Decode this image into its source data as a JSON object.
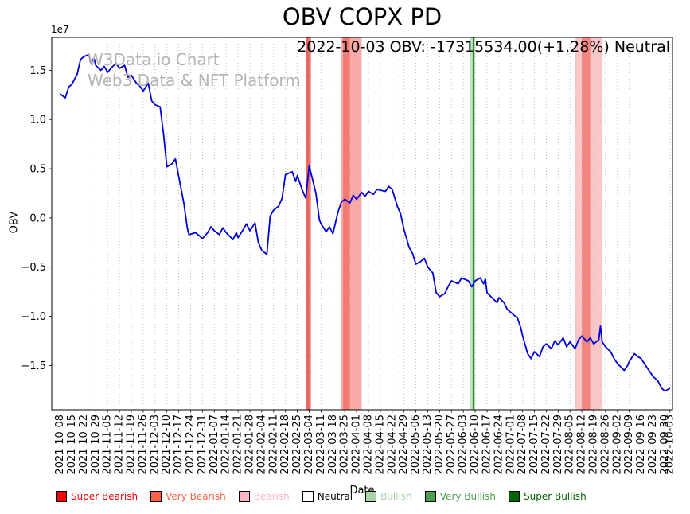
{
  "watermark": {
    "line1": "W3Data.io Chart",
    "line2": "Web3 Data & NFT Platform"
  },
  "legend": [
    {
      "label": "Super Bearish",
      "color": "#ff0000",
      "text_color": "#ff0000"
    },
    {
      "label": "Very Bearish",
      "color": "#ff6347",
      "text_color": "#ff6347"
    },
    {
      "label": "Bearish",
      "color": "#ffb6c1",
      "text_color": "#ffb6c1"
    },
    {
      "label": "Neutral",
      "color": "#ffffff",
      "text_color": "#000000"
    },
    {
      "label": "Bullish",
      "color": "#a8d5a8",
      "text_color": "#a8d5a8"
    },
    {
      "label": "Very Bullish",
      "color": "#4d9e4d",
      "text_color": "#4d9e4d"
    },
    {
      "label": "Super Bullish",
      "color": "#006400",
      "text_color": "#006400"
    }
  ],
  "chart_data": {
    "type": "line",
    "title": "OBV COPX PD",
    "annotation": "2022-10-03 OBV: -17315534.00(+1.28%) Neutral",
    "xlabel": "Date",
    "ylabel": "OBV",
    "y_offset_text": "1e7",
    "grid": "vertical-dotted",
    "legend_position": "bottom",
    "value_multiplier": 10000000,
    "ylim": [
      -19500000,
      18350000
    ],
    "y_ticks": [
      -1.5,
      -1.0,
      -0.5,
      0.0,
      0.5,
      1.0,
      1.5
    ],
    "x_tick_dates": [
      "2021-10-08",
      "2021-10-15",
      "2021-10-22",
      "2021-10-29",
      "2021-11-05",
      "2021-11-12",
      "2021-11-19",
      "2021-11-26",
      "2021-12-03",
      "2021-12-10",
      "2021-12-17",
      "2021-12-24",
      "2021-12-31",
      "2022-01-07",
      "2022-01-14",
      "2022-01-21",
      "2022-01-28",
      "2022-02-04",
      "2022-02-11",
      "2022-02-18",
      "2022-02-25",
      "2022-03-04",
      "2022-03-11",
      "2022-03-18",
      "2022-03-25",
      "2022-04-01",
      "2022-04-08",
      "2022-04-15",
      "2022-04-22",
      "2022-04-29",
      "2022-05-06",
      "2022-05-13",
      "2022-05-20",
      "2022-05-27",
      "2022-06-03",
      "2022-06-10",
      "2022-06-17",
      "2022-06-24",
      "2022-07-01",
      "2022-07-08",
      "2022-07-15",
      "2022-07-22",
      "2022-07-29",
      "2022-08-05",
      "2022-08-12",
      "2022-08-19",
      "2022-08-26",
      "2022-09-02",
      "2022-09-09",
      "2022-09-16",
      "2022-09-23",
      "2022-09-30",
      "2022-10-03"
    ],
    "signal_bands": [
      {
        "start": "2022-03-02",
        "end": "2022-03-05",
        "color": "#e8413a",
        "opacity": 0.8
      },
      {
        "start": "2022-03-23",
        "end": "2022-04-04",
        "color": "#f4645c",
        "opacity": 0.55
      },
      {
        "start": "2022-03-24",
        "end": "2022-03-28",
        "color": "#e8413a",
        "opacity": 0.45
      },
      {
        "start": "2022-06-07",
        "end": "2022-06-10",
        "color": "#8fd08f",
        "opacity": 0.6
      },
      {
        "start": "2022-08-08",
        "end": "2022-08-24",
        "color": "#f08080",
        "opacity": 0.45
      },
      {
        "start": "2022-08-12",
        "end": "2022-08-17",
        "color": "#ef5a50",
        "opacity": 0.6
      }
    ],
    "signal_lines": [
      {
        "date": "2022-06-09",
        "color": "#1f7a1f"
      }
    ],
    "series": [
      {
        "name": "OBV",
        "color": "#0000dd",
        "points": [
          [
            "2021-10-08",
            1.26
          ],
          [
            "2021-10-11",
            1.22
          ],
          [
            "2021-10-13",
            1.33
          ],
          [
            "2021-10-15",
            1.36
          ],
          [
            "2021-10-18",
            1.46
          ],
          [
            "2021-10-20",
            1.61
          ],
          [
            "2021-10-22",
            1.64
          ],
          [
            "2021-10-25",
            1.66
          ],
          [
            "2021-10-26",
            1.58
          ],
          [
            "2021-10-28",
            1.62
          ],
          [
            "2021-10-29",
            1.55
          ],
          [
            "2021-11-01",
            1.5
          ],
          [
            "2021-11-03",
            1.54
          ],
          [
            "2021-11-05",
            1.48
          ],
          [
            "2021-11-08",
            1.54
          ],
          [
            "2021-11-10",
            1.57
          ],
          [
            "2021-11-12",
            1.52
          ],
          [
            "2021-11-15",
            1.55
          ],
          [
            "2021-11-17",
            1.43
          ],
          [
            "2021-11-19",
            1.45
          ],
          [
            "2021-11-22",
            1.37
          ],
          [
            "2021-11-24",
            1.34
          ],
          [
            "2021-11-26",
            1.29
          ],
          [
            "2021-11-29",
            1.37
          ],
          [
            "2021-12-01",
            1.19
          ],
          [
            "2021-12-03",
            1.15
          ],
          [
            "2021-12-06",
            1.13
          ],
          [
            "2021-12-08",
            0.85
          ],
          [
            "2021-12-10",
            0.52
          ],
          [
            "2021-12-13",
            0.55
          ],
          [
            "2021-12-15",
            0.6
          ],
          [
            "2021-12-17",
            0.42
          ],
          [
            "2021-12-20",
            0.15
          ],
          [
            "2021-12-22",
            -0.1
          ],
          [
            "2021-12-23",
            -0.17
          ],
          [
            "2021-12-27",
            -0.15
          ],
          [
            "2021-12-29",
            -0.18
          ],
          [
            "2021-12-31",
            -0.21
          ],
          [
            "2022-01-03",
            -0.15
          ],
          [
            "2022-01-05",
            -0.09
          ],
          [
            "2022-01-07",
            -0.13
          ],
          [
            "2022-01-10",
            -0.17
          ],
          [
            "2022-01-12",
            -0.1
          ],
          [
            "2022-01-14",
            -0.15
          ],
          [
            "2022-01-18",
            -0.22
          ],
          [
            "2022-01-20",
            -0.15
          ],
          [
            "2022-01-21",
            -0.2
          ],
          [
            "2022-01-24",
            -0.12
          ],
          [
            "2022-01-26",
            -0.06
          ],
          [
            "2022-01-28",
            -0.13
          ],
          [
            "2022-01-31",
            -0.05
          ],
          [
            "2022-02-02",
            -0.25
          ],
          [
            "2022-02-04",
            -0.33
          ],
          [
            "2022-02-07",
            -0.37
          ],
          [
            "2022-02-09",
            0.02
          ],
          [
            "2022-02-11",
            0.08
          ],
          [
            "2022-02-14",
            0.12
          ],
          [
            "2022-02-16",
            0.2
          ],
          [
            "2022-02-18",
            0.44
          ],
          [
            "2022-02-22",
            0.47
          ],
          [
            "2022-02-24",
            0.37
          ],
          [
            "2022-02-25",
            0.43
          ],
          [
            "2022-02-28",
            0.28
          ],
          [
            "2022-03-02",
            0.2
          ],
          [
            "2022-03-04",
            0.53
          ],
          [
            "2022-03-08",
            0.25
          ],
          [
            "2022-03-10",
            -0.02
          ],
          [
            "2022-03-11",
            -0.06
          ],
          [
            "2022-03-14",
            -0.14
          ],
          [
            "2022-03-16",
            -0.09
          ],
          [
            "2022-03-18",
            -0.16
          ],
          [
            "2022-03-21",
            0.06
          ],
          [
            "2022-03-23",
            0.16
          ],
          [
            "2022-03-25",
            0.19
          ],
          [
            "2022-03-28",
            0.15
          ],
          [
            "2022-03-30",
            0.23
          ],
          [
            "2022-04-01",
            0.19
          ],
          [
            "2022-04-04",
            0.26
          ],
          [
            "2022-04-06",
            0.22
          ],
          [
            "2022-04-08",
            0.27
          ],
          [
            "2022-04-11",
            0.24
          ],
          [
            "2022-04-13",
            0.29
          ],
          [
            "2022-04-18",
            0.27
          ],
          [
            "2022-04-20",
            0.32
          ],
          [
            "2022-04-22",
            0.29
          ],
          [
            "2022-04-25",
            0.12
          ],
          [
            "2022-04-27",
            0.04
          ],
          [
            "2022-04-29",
            -0.12
          ],
          [
            "2022-05-02",
            -0.3
          ],
          [
            "2022-05-04",
            -0.36
          ],
          [
            "2022-05-06",
            -0.47
          ],
          [
            "2022-05-09",
            -0.44
          ],
          [
            "2022-05-11",
            -0.41
          ],
          [
            "2022-05-13",
            -0.5
          ],
          [
            "2022-05-16",
            -0.56
          ],
          [
            "2022-05-18",
            -0.76
          ],
          [
            "2022-05-20",
            -0.8
          ],
          [
            "2022-05-23",
            -0.77
          ],
          [
            "2022-05-25",
            -0.7
          ],
          [
            "2022-05-27",
            -0.64
          ],
          [
            "2022-05-31",
            -0.67
          ],
          [
            "2022-06-02",
            -0.61
          ],
          [
            "2022-06-06",
            -0.64
          ],
          [
            "2022-06-08",
            -0.7
          ],
          [
            "2022-06-10",
            -0.64
          ],
          [
            "2022-06-13",
            -0.61
          ],
          [
            "2022-06-15",
            -0.67
          ],
          [
            "2022-06-16",
            -0.62
          ],
          [
            "2022-06-17",
            -0.76
          ],
          [
            "2022-06-21",
            -0.83
          ],
          [
            "2022-06-23",
            -0.86
          ],
          [
            "2022-06-24",
            -0.81
          ],
          [
            "2022-06-27",
            -0.86
          ],
          [
            "2022-06-29",
            -0.93
          ],
          [
            "2022-07-01",
            -0.96
          ],
          [
            "2022-07-05",
            -1.02
          ],
          [
            "2022-07-07",
            -1.12
          ],
          [
            "2022-07-08",
            -1.2
          ],
          [
            "2022-07-11",
            -1.38
          ],
          [
            "2022-07-13",
            -1.43
          ],
          [
            "2022-07-15",
            -1.36
          ],
          [
            "2022-07-18",
            -1.41
          ],
          [
            "2022-07-20",
            -1.31
          ],
          [
            "2022-07-22",
            -1.28
          ],
          [
            "2022-07-25",
            -1.33
          ],
          [
            "2022-07-27",
            -1.25
          ],
          [
            "2022-07-29",
            -1.29
          ],
          [
            "2022-08-01",
            -1.22
          ],
          [
            "2022-08-03",
            -1.31
          ],
          [
            "2022-08-05",
            -1.26
          ],
          [
            "2022-08-08",
            -1.33
          ],
          [
            "2022-08-10",
            -1.24
          ],
          [
            "2022-08-12",
            -1.2
          ],
          [
            "2022-08-15",
            -1.26
          ],
          [
            "2022-08-17",
            -1.22
          ],
          [
            "2022-08-19",
            -1.28
          ],
          [
            "2022-08-22",
            -1.24
          ],
          [
            "2022-08-23",
            -1.1
          ],
          [
            "2022-08-24",
            -1.26
          ],
          [
            "2022-08-26",
            -1.31
          ],
          [
            "2022-08-29",
            -1.36
          ],
          [
            "2022-08-31",
            -1.43
          ],
          [
            "2022-09-02",
            -1.48
          ],
          [
            "2022-09-06",
            -1.55
          ],
          [
            "2022-09-08",
            -1.5
          ],
          [
            "2022-09-09",
            -1.46
          ],
          [
            "2022-09-12",
            -1.38
          ],
          [
            "2022-09-14",
            -1.41
          ],
          [
            "2022-09-16",
            -1.43
          ],
          [
            "2022-09-19",
            -1.51
          ],
          [
            "2022-09-21",
            -1.56
          ],
          [
            "2022-09-23",
            -1.61
          ],
          [
            "2022-09-26",
            -1.66
          ],
          [
            "2022-09-28",
            -1.73
          ],
          [
            "2022-09-30",
            -1.76
          ],
          [
            "2022-10-03",
            -1.7315534
          ]
        ]
      }
    ]
  }
}
